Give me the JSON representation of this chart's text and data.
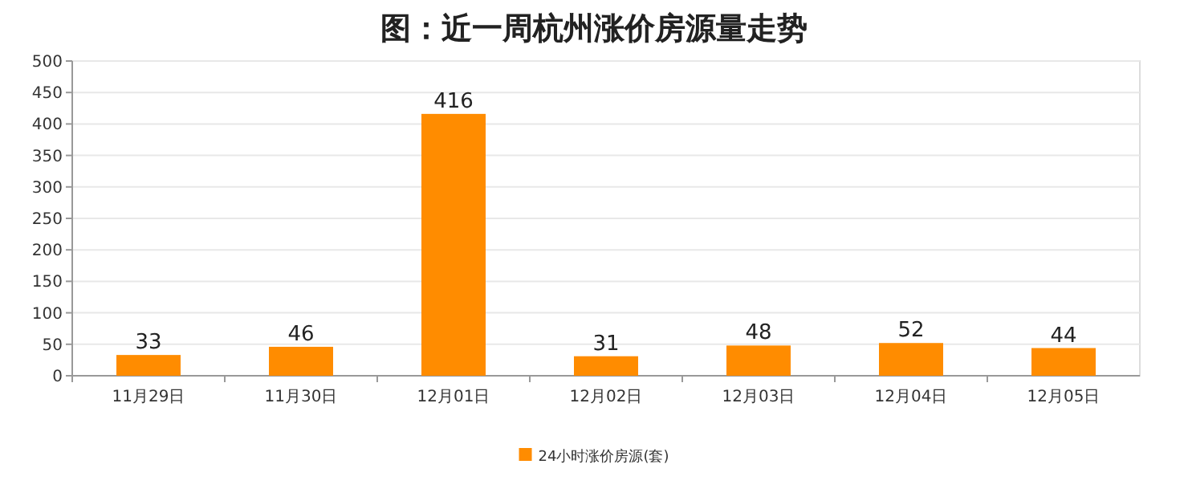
{
  "chart_data": {
    "type": "bar",
    "title": "图：近一周杭州涨价房源量走势",
    "categories": [
      "11月29日",
      "11月30日",
      "12月01日",
      "12月02日",
      "12月03日",
      "12月04日",
      "12月05日"
    ],
    "series": [
      {
        "name": "24小时涨价房源(套)",
        "color": "#ff8c00",
        "values": [
          33,
          46,
          416,
          31,
          48,
          52,
          44
        ]
      }
    ],
    "ylim": [
      0,
      500
    ],
    "yticks": [
      0,
      50,
      100,
      150,
      200,
      250,
      300,
      350,
      400,
      450,
      500
    ],
    "grid": "y",
    "legend": "bottom",
    "data_labels": true
  }
}
